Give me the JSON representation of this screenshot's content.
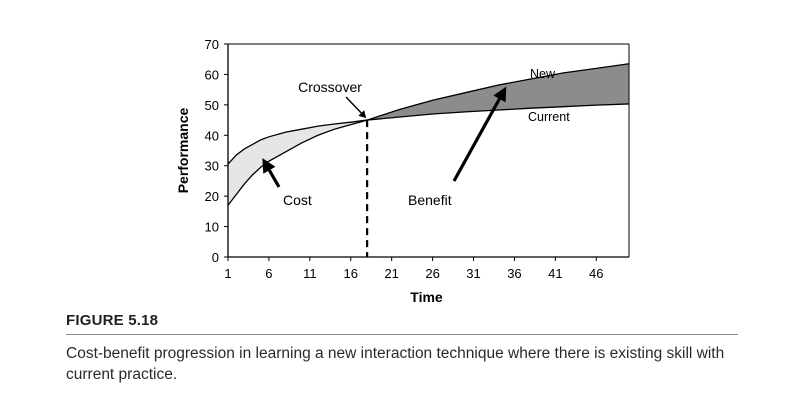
{
  "figure": {
    "label": "FIGURE 5.18",
    "caption": "Cost-benefit progression in learning a new interaction technique where there is existing skill with current practice."
  },
  "chart_data": {
    "type": "area",
    "title": "",
    "xlabel": "Time",
    "ylabel": "Performance",
    "xlim": [
      1,
      50
    ],
    "ylim": [
      0,
      70
    ],
    "xticks": [
      1,
      6,
      11,
      16,
      21,
      26,
      31,
      36,
      41,
      46
    ],
    "yticks": [
      0,
      10,
      20,
      30,
      40,
      50,
      60,
      70
    ],
    "grid": false,
    "series": [
      {
        "name": "New",
        "x": [
          1,
          2,
          3,
          4,
          5,
          6,
          8,
          10,
          12,
          14,
          16,
          18,
          22,
          26,
          30,
          34,
          38,
          42,
          46,
          50
        ],
        "y": [
          17,
          20.5,
          24,
          27,
          29.5,
          31.5,
          34.5,
          37.5,
          40,
          42,
          43.5,
          45,
          48.5,
          51.5,
          54,
          56.5,
          58.5,
          60.5,
          62,
          63.5
        ]
      },
      {
        "name": "Current",
        "x": [
          1,
          2,
          3,
          4,
          5,
          6,
          8,
          10,
          12,
          14,
          16,
          18,
          22,
          26,
          30,
          34,
          38,
          42,
          46,
          50
        ],
        "y": [
          30.5,
          33.5,
          35.5,
          37,
          38.5,
          39.5,
          41,
          42,
          43,
          43.7,
          44.3,
          45,
          46,
          47,
          47.7,
          48.3,
          48.9,
          49.4,
          49.9,
          50.3
        ]
      }
    ],
    "crossover_x": 18,
    "annotations": {
      "crossover": "Crossover",
      "cost": "Cost",
      "benefit": "Benefit",
      "new": "New",
      "current": "Current"
    },
    "colors": {
      "cost_fill": "#e6e6e6",
      "benefit_fill": "#8c8c8c",
      "line": "#000000"
    }
  }
}
